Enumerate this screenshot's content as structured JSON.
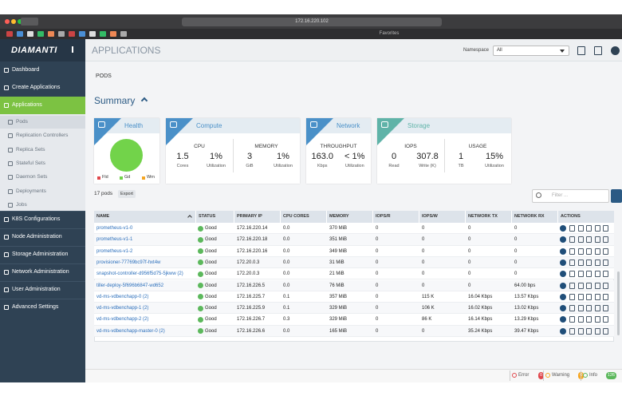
{
  "browser": {
    "url": "172.16.220.102",
    "favorites": "Favorites"
  },
  "sidebar": {
    "logo": "DIAMANTI",
    "menu_top": [
      "Dashboard",
      "Create Applications",
      "Applications"
    ],
    "submenu": [
      "Pods",
      "Replication Controllers",
      "Replica Sets",
      "Stateful Sets",
      "Daemon Sets",
      "Deployments",
      "Jobs"
    ],
    "menu_bottom": [
      "K8S Configurations",
      "Node Administration",
      "Storage Administration",
      "Network Administration",
      "User Administration",
      "Advanced Settings"
    ]
  },
  "header": {
    "title": "APPLICATIONS",
    "namespace_label": "Namespace",
    "namespace_value": "All"
  },
  "page": {
    "tab": "PODS",
    "summary": "Summary"
  },
  "cards": [
    {
      "title": "Health",
      "legend": [
        "Fld",
        "Gd",
        "Wrn"
      ]
    },
    {
      "title": "Compute",
      "metrics": [
        {
          "label": "CPU",
          "items": [
            {
              "value": "1.5",
              "unit": "Cores"
            },
            {
              "value": "1%",
              "unit": "Utilization"
            }
          ]
        },
        {
          "label": "MEMORY",
          "items": [
            {
              "value": "3",
              "unit": "GiB"
            },
            {
              "value": "1%",
              "unit": "Utilization"
            }
          ]
        }
      ]
    },
    {
      "title": "Network",
      "metrics": [
        {
          "label": "THROUGHPUT",
          "items": [
            {
              "value": "163.0",
              "unit": "Kbps"
            },
            {
              "value": "< 1%",
              "unit": "Utilization"
            }
          ]
        }
      ]
    },
    {
      "title": "Storage",
      "metrics": [
        {
          "label": "IOPS",
          "items": [
            {
              "value": "0",
              "unit": "Read"
            },
            {
              "value": "307.8",
              "unit": "Write (K)"
            }
          ]
        },
        {
          "label": "USAGE",
          "items": [
            {
              "value": "1",
              "unit": "TB"
            },
            {
              "value": "15%",
              "unit": "Utilization"
            }
          ]
        }
      ]
    }
  ],
  "toolbar": {
    "count": "17 pods",
    "export": "Export",
    "filter_placeholder": "Filter ..."
  },
  "table": {
    "columns": [
      "NAME",
      "STATUS",
      "PRIMARY IP",
      "CPU CORES",
      "MEMORY",
      "IOPS/R",
      "IOPS/W",
      "NETWORK TX",
      "NETWORK RX",
      "ACTIONS"
    ],
    "rows": [
      [
        "prometheus-v1-0",
        "Good",
        "172.16.220.14",
        "0.0",
        "370 MiB",
        "0",
        "0",
        "0",
        "0"
      ],
      [
        "prometheus-v1-1",
        "Good",
        "172.16.220.18",
        "0.0",
        "351 MiB",
        "0",
        "0",
        "0",
        "0"
      ],
      [
        "prometheus-v1-2",
        "Good",
        "172.16.220.16",
        "0.0",
        "349 MiB",
        "0",
        "0",
        "0",
        "0"
      ],
      [
        "provisioner-77769bc97f-hxt4w",
        "Good",
        "172.20.0.3",
        "0.0",
        "31 MiB",
        "0",
        "0",
        "0",
        "0"
      ],
      [
        "snapshot-controller-d956f5d75-5jkww (2)",
        "Good",
        "172.20.0.3",
        "0.0",
        "21 MiB",
        "0",
        "0",
        "0",
        "0"
      ],
      [
        "tiller-deploy-5f696b6847-wd652",
        "Good",
        "172.16.226.5",
        "0.0",
        "76 MiB",
        "0",
        "0",
        "0",
        "64.00 bps"
      ],
      [
        "vd-ms-vdbenchapp-0 (2)",
        "Good",
        "172.16.225.7",
        "0.1",
        "357 MiB",
        "0",
        "115 K",
        "16.04 Kbps",
        "13.57 Kbps"
      ],
      [
        "vd-ms-vdbenchapp-1 (2)",
        "Good",
        "172.16.225.9",
        "0.1",
        "329 MiB",
        "0",
        "106 K",
        "16.02 Kbps",
        "13.02 Kbps"
      ],
      [
        "vd-ms-vdbenchapp-2 (2)",
        "Good",
        "172.16.226.7",
        "0.3",
        "329 MiB",
        "0",
        "86 K",
        "16.14 Kbps",
        "13.29 Kbps"
      ],
      [
        "vd-ms-vdbenchapp-master-0 (2)",
        "Good",
        "172.16.226.6",
        "0.0",
        "165 MiB",
        "0",
        "0",
        "35.24 Kbps",
        "39.47 Kbps"
      ]
    ]
  },
  "status_bar": {
    "error": "Error",
    "error_count": "0",
    "warning": "Warning",
    "warning_count": "0",
    "info": "Info",
    "info_count": "126"
  }
}
